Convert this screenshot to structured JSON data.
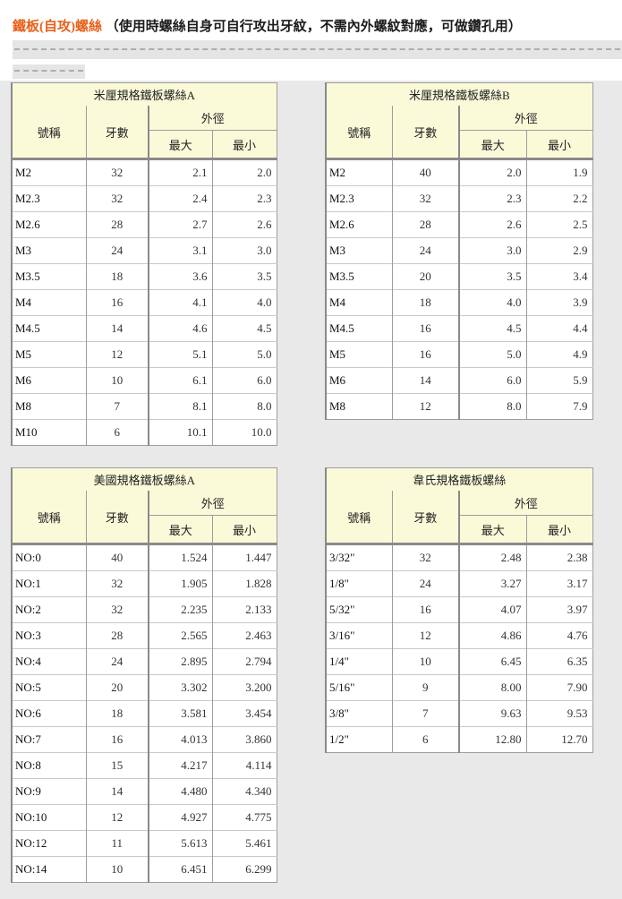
{
  "page": {
    "heading": {
      "main": "鐵板(自攻)螺絲",
      "note": "（使用時螺絲自身可自行攻出牙紋，不需內外螺紋對應，可做鑽孔用）"
    },
    "colors": {
      "accent": "#e8611c",
      "table_header_bg": "#fafad9",
      "content_bg": "#e9e9e9",
      "table_border": "#8a8a8a"
    }
  },
  "columns": {
    "name": "號稱",
    "threads": "牙數",
    "outer_diameter": "外徑",
    "max": "最大",
    "min": "最小"
  },
  "tables": [
    {
      "id": "metric-a",
      "title": "米厘規格鐵板螺絲A",
      "rows": [
        [
          "M2",
          "32",
          "2.1",
          "2.0"
        ],
        [
          "M2.3",
          "32",
          "2.4",
          "2.3"
        ],
        [
          "M2.6",
          "28",
          "2.7",
          "2.6"
        ],
        [
          "M3",
          "24",
          "3.1",
          "3.0"
        ],
        [
          "M3.5",
          "18",
          "3.6",
          "3.5"
        ],
        [
          "M4",
          "16",
          "4.1",
          "4.0"
        ],
        [
          "M4.5",
          "14",
          "4.6",
          "4.5"
        ],
        [
          "M5",
          "12",
          "5.1",
          "5.0"
        ],
        [
          "M6",
          "10",
          "6.1",
          "6.0"
        ],
        [
          "M8",
          "7",
          "8.1",
          "8.0"
        ],
        [
          "M10",
          "6",
          "10.1",
          "10.0"
        ]
      ]
    },
    {
      "id": "metric-b",
      "title": "米厘規格鐵板螺絲B",
      "rows": [
        [
          "M2",
          "40",
          "2.0",
          "1.9"
        ],
        [
          "M2.3",
          "32",
          "2.3",
          "2.2"
        ],
        [
          "M2.6",
          "28",
          "2.6",
          "2.5"
        ],
        [
          "M3",
          "24",
          "3.0",
          "2.9"
        ],
        [
          "M3.5",
          "20",
          "3.5",
          "3.4"
        ],
        [
          "M4",
          "18",
          "4.0",
          "3.9"
        ],
        [
          "M4.5",
          "16",
          "4.5",
          "4.4"
        ],
        [
          "M5",
          "16",
          "5.0",
          "4.9"
        ],
        [
          "M6",
          "14",
          "6.0",
          "5.9"
        ],
        [
          "M8",
          "12",
          "8.0",
          "7.9"
        ]
      ]
    },
    {
      "id": "us-a",
      "title": "美國規格鐵板螺絲A",
      "rows": [
        [
          "NO:0",
          "40",
          "1.524",
          "1.447"
        ],
        [
          "NO:1",
          "32",
          "1.905",
          "1.828"
        ],
        [
          "NO:2",
          "32",
          "2.235",
          "2.133"
        ],
        [
          "NO:3",
          "28",
          "2.565",
          "2.463"
        ],
        [
          "NO:4",
          "24",
          "2.895",
          "2.794"
        ],
        [
          "NO:5",
          "20",
          "3.302",
          "3.200"
        ],
        [
          "NO:6",
          "18",
          "3.581",
          "3.454"
        ],
        [
          "NO:7",
          "16",
          "4.013",
          "3.860"
        ],
        [
          "NO:8",
          "15",
          "4.217",
          "4.114"
        ],
        [
          "NO:9",
          "14",
          "4.480",
          "4.340"
        ],
        [
          "NO:10",
          "12",
          "4.927",
          "4.775"
        ],
        [
          "NO:12",
          "11",
          "5.613",
          "5.461"
        ],
        [
          "NO:14",
          "10",
          "6.451",
          "6.299"
        ]
      ]
    },
    {
      "id": "whitworth",
      "title": "韋氏規格鐵板螺絲",
      "rows": [
        [
          "3/32\"",
          "32",
          "2.48",
          "2.38"
        ],
        [
          "1/8\"",
          "24",
          "3.27",
          "3.17"
        ],
        [
          "5/32\"",
          "16",
          "4.07",
          "3.97"
        ],
        [
          "3/16\"",
          "12",
          "4.86",
          "4.76"
        ],
        [
          "1/4\"",
          "10",
          "6.45",
          "6.35"
        ],
        [
          "5/16\"",
          "9",
          "8.00",
          "7.90"
        ],
        [
          "3/8\"",
          "7",
          "9.63",
          "9.53"
        ],
        [
          "1/2\"",
          "6",
          "12.80",
          "12.70"
        ]
      ]
    }
  ]
}
